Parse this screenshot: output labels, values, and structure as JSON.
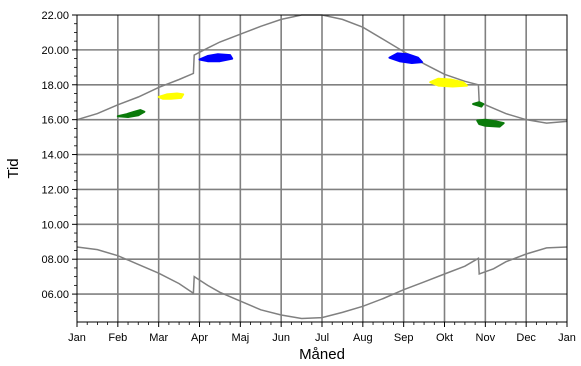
{
  "chart_data": {
    "type": "line",
    "title": "",
    "xlabel": "Måned",
    "ylabel": "Tid",
    "x_ticks": [
      "Jan",
      "Feb",
      "Mar",
      "Apr",
      "Maj",
      "Jun",
      "Jul",
      "Aug",
      "Sep",
      "Okt",
      "Nov",
      "Dec",
      "Jan"
    ],
    "y_ticks": [
      "06.00",
      "08.00",
      "10.00",
      "12.00",
      "14.00",
      "16.00",
      "18.00",
      "20.00",
      "22.00"
    ],
    "xlim": [
      0,
      12
    ],
    "ylim": [
      4.4,
      22
    ],
    "grid": true,
    "legend": "none",
    "series": [
      {
        "kind": "line",
        "color": "#808080",
        "points": [
          [
            0,
            16.0
          ],
          [
            0.5,
            16.35
          ],
          [
            1,
            16.85
          ],
          [
            1.5,
            17.3
          ],
          [
            2,
            17.85
          ],
          [
            2.5,
            18.3
          ],
          [
            2.85,
            18.65
          ],
          [
            2.87,
            19.7
          ],
          [
            3.2,
            20.1
          ],
          [
            3.5,
            20.45
          ],
          [
            4,
            20.9
          ],
          [
            4.5,
            21.35
          ],
          [
            5,
            21.75
          ],
          [
            5.5,
            22.0
          ],
          [
            6,
            22.0
          ],
          [
            6.5,
            21.75
          ],
          [
            7,
            21.3
          ],
          [
            7.5,
            20.6
          ],
          [
            8,
            19.9
          ],
          [
            8.5,
            19.2
          ],
          [
            9,
            18.6
          ],
          [
            9.5,
            18.2
          ],
          [
            9.83,
            18.0
          ],
          [
            9.85,
            17.0
          ],
          [
            10.2,
            16.65
          ],
          [
            10.5,
            16.35
          ],
          [
            11,
            16.0
          ],
          [
            11.5,
            15.8
          ],
          [
            12,
            15.9
          ]
        ]
      },
      {
        "kind": "line",
        "color": "#808080",
        "points": [
          [
            0,
            8.7
          ],
          [
            0.5,
            8.55
          ],
          [
            1,
            8.2
          ],
          [
            1.5,
            7.7
          ],
          [
            2,
            7.2
          ],
          [
            2.5,
            6.6
          ],
          [
            2.85,
            6.05
          ],
          [
            2.87,
            7.0
          ],
          [
            3.2,
            6.5
          ],
          [
            3.5,
            6.1
          ],
          [
            4,
            5.6
          ],
          [
            4.5,
            5.1
          ],
          [
            5,
            4.8
          ],
          [
            5.5,
            4.6
          ],
          [
            6,
            4.65
          ],
          [
            6.5,
            4.95
          ],
          [
            7,
            5.3
          ],
          [
            7.5,
            5.75
          ],
          [
            8,
            6.25
          ],
          [
            8.5,
            6.7
          ],
          [
            9,
            7.15
          ],
          [
            9.5,
            7.6
          ],
          [
            9.83,
            8.05
          ],
          [
            9.85,
            7.15
          ],
          [
            10.2,
            7.45
          ],
          [
            10.5,
            7.85
          ],
          [
            11,
            8.3
          ],
          [
            11.5,
            8.65
          ],
          [
            12,
            8.7
          ]
        ]
      },
      {
        "kind": "blob",
        "color": "#0a7a0a",
        "points": [
          [
            1.0,
            16.2
          ],
          [
            1.2,
            16.3
          ],
          [
            1.4,
            16.45
          ],
          [
            1.55,
            16.55
          ],
          [
            1.65,
            16.45
          ],
          [
            1.5,
            16.25
          ],
          [
            1.25,
            16.15
          ]
        ]
      },
      {
        "kind": "blob",
        "color": "#ffff00",
        "points": [
          [
            2.0,
            17.3
          ],
          [
            2.2,
            17.45
          ],
          [
            2.45,
            17.5
          ],
          [
            2.6,
            17.45
          ],
          [
            2.55,
            17.25
          ],
          [
            2.3,
            17.2
          ],
          [
            2.1,
            17.2
          ]
        ]
      },
      {
        "kind": "blob",
        "color": "#0000ff",
        "points": [
          [
            3.0,
            19.45
          ],
          [
            3.2,
            19.65
          ],
          [
            3.45,
            19.75
          ],
          [
            3.75,
            19.7
          ],
          [
            3.8,
            19.5
          ],
          [
            3.5,
            19.35
          ],
          [
            3.2,
            19.35
          ]
        ]
      },
      {
        "kind": "blob",
        "color": "#0000ff",
        "points": [
          [
            7.65,
            19.55
          ],
          [
            7.85,
            19.8
          ],
          [
            8.1,
            19.75
          ],
          [
            8.35,
            19.55
          ],
          [
            8.45,
            19.3
          ],
          [
            8.2,
            19.25
          ],
          [
            7.9,
            19.35
          ]
        ]
      },
      {
        "kind": "blob",
        "color": "#ffff00",
        "points": [
          [
            8.65,
            18.15
          ],
          [
            8.85,
            18.35
          ],
          [
            9.15,
            18.3
          ],
          [
            9.45,
            18.15
          ],
          [
            9.55,
            17.95
          ],
          [
            9.2,
            17.9
          ],
          [
            8.85,
            17.95
          ]
        ]
      },
      {
        "kind": "blob",
        "color": "#0a7a0a",
        "points": [
          [
            9.7,
            16.9
          ],
          [
            9.85,
            17.0
          ],
          [
            9.95,
            16.9
          ],
          [
            9.9,
            16.75
          ]
        ]
      },
      {
        "kind": "blob",
        "color": "#0a7a0a",
        "points": [
          [
            9.8,
            15.95
          ],
          [
            10.0,
            16.0
          ],
          [
            10.25,
            15.9
          ],
          [
            10.45,
            15.8
          ],
          [
            10.35,
            15.6
          ],
          [
            10.0,
            15.65
          ],
          [
            9.85,
            15.75
          ]
        ]
      }
    ]
  }
}
